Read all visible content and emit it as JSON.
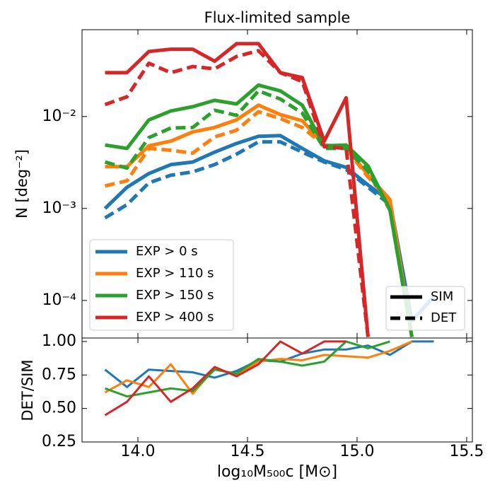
{
  "chart_data": [
    {
      "type": "line",
      "title": "Flux-limited sample",
      "y_label": "N [deg⁻²]",
      "log_y": true,
      "x": [
        13.85,
        13.95,
        14.05,
        14.15,
        14.25,
        14.35,
        14.45,
        14.55,
        14.65,
        14.75,
        14.85,
        14.95,
        15.05,
        15.15,
        15.25,
        15.35
      ],
      "xlim": [
        13.745,
        15.526
      ],
      "ylim": [
        3.9e-05,
        0.088
      ],
      "yticks": [
        {
          "value": 0.0001,
          "label": "10⁻⁴"
        },
        {
          "value": 0.001,
          "label": "10⁻³"
        },
        {
          "value": 0.01,
          "label": "10⁻²"
        }
      ],
      "legend": "lower left",
      "series": [
        {
          "name": "EXP > 0 s",
          "color": "#1f77b4",
          "values": [
            0.001,
            0.0017,
            0.0024,
            0.003,
            0.0032,
            0.0041,
            0.0051,
            0.0061,
            0.0062,
            0.0045,
            0.0033,
            0.0028,
            0.0018,
            0.0012,
            6e-05,
            0.00011
          ],
          "det_values": [
            0.00079,
            0.0011,
            0.0019,
            0.0023,
            0.0025,
            0.003,
            0.0039,
            0.0053,
            0.0053,
            0.0041,
            0.0032,
            0.00265,
            0.0017,
            0.0011,
            6e-05,
            0.00011
          ]
        },
        {
          "name": "EXP > 110 s",
          "color": "#ff7f0e",
          "values": [
            0.00285,
            0.00285,
            0.0048,
            0.0054,
            0.0068,
            0.0076,
            0.0092,
            0.0133,
            0.0105,
            0.009,
            0.0049,
            0.0047,
            0.0023,
            0.00125,
            4e-05,
            null
          ],
          "det_values": [
            0.00176,
            0.002,
            0.0045,
            0.0043,
            0.004,
            0.006,
            0.0071,
            0.0113,
            0.0095,
            0.0076,
            0.0049,
            0.0045,
            0.0022,
            0.0012,
            4e-05,
            null
          ]
        },
        {
          "name": "EXP > 150 s",
          "color": "#2ca02c",
          "values": [
            0.0049,
            0.0045,
            0.0092,
            0.0115,
            0.0128,
            0.015,
            0.0137,
            0.022,
            0.019,
            0.0133,
            0.0048,
            0.0049,
            0.0029,
            0.00096,
            4e-05,
            null
          ],
          "det_values": [
            0.0032,
            0.00275,
            0.0059,
            0.0075,
            0.0076,
            0.0117,
            0.0103,
            0.019,
            0.0155,
            0.0109,
            0.0045,
            0.0045,
            0.00255,
            0.00096,
            4e-05,
            null
          ]
        },
        {
          "name": "EXP > 400 s",
          "color": "#d62728",
          "values": [
            0.03,
            0.03,
            0.051,
            0.054,
            0.054,
            0.04,
            0.062,
            0.062,
            0.03,
            0.0265,
            0.0054,
            0.016,
            4e-05,
            null,
            null,
            null
          ],
          "det_values": [
            0.0135,
            0.0164,
            0.038,
            0.03,
            0.035,
            0.033,
            0.045,
            0.052,
            0.03,
            0.024,
            0.0047,
            0.0045,
            4e-05,
            null,
            null,
            null
          ]
        }
      ],
      "style_legend": {
        "loc": "lower right",
        "color": "#000000",
        "entries": [
          {
            "name": "SIM",
            "dash": "solid"
          },
          {
            "name": "DET",
            "dash": "dashed"
          }
        ]
      }
    },
    {
      "type": "line",
      "x_label": "log₁₀M₅₀₀c [M⊙]",
      "y_label": "DET/SIM",
      "xlim": [
        13.745,
        15.526
      ],
      "ylim": [
        0.25,
        1.026
      ],
      "xticks": [
        {
          "value": 14,
          "label": "14.0"
        },
        14.5,
        {
          "value": 15,
          "label": "15.0"
        },
        15.5
      ],
      "yticks": [
        0.25,
        {
          "value": 0.5,
          "label": "0.50"
        },
        0.75,
        {
          "value": 1,
          "label": "1.00"
        }
      ],
      "series": [
        {
          "color": "#1f77b4",
          "values": [
            0.79,
            0.66,
            0.79,
            0.78,
            0.77,
            0.73,
            0.78,
            0.86,
            0.85,
            0.91,
            0.94,
            0.94,
            0.97,
            0.9,
            1.0,
            1.0
          ]
        },
        {
          "color": "#ff7f0e",
          "values": [
            0.62,
            0.71,
            0.66,
            0.83,
            0.61,
            0.8,
            0.75,
            0.85,
            0.87,
            0.86,
            0.9,
            0.89,
            0.88,
            0.93,
            1.0,
            null
          ]
        },
        {
          "color": "#2ca02c",
          "values": [
            0.65,
            0.59,
            0.62,
            0.65,
            0.63,
            0.79,
            0.76,
            0.87,
            0.85,
            0.82,
            0.85,
            1.0,
            0.95,
            1.0,
            null,
            null
          ]
        },
        {
          "color": "#d62728",
          "values": [
            0.45,
            0.55,
            0.74,
            0.55,
            0.65,
            0.81,
            0.74,
            0.83,
            1.0,
            0.91,
            1.0,
            1.0,
            null,
            null,
            null,
            null
          ]
        }
      ]
    }
  ]
}
